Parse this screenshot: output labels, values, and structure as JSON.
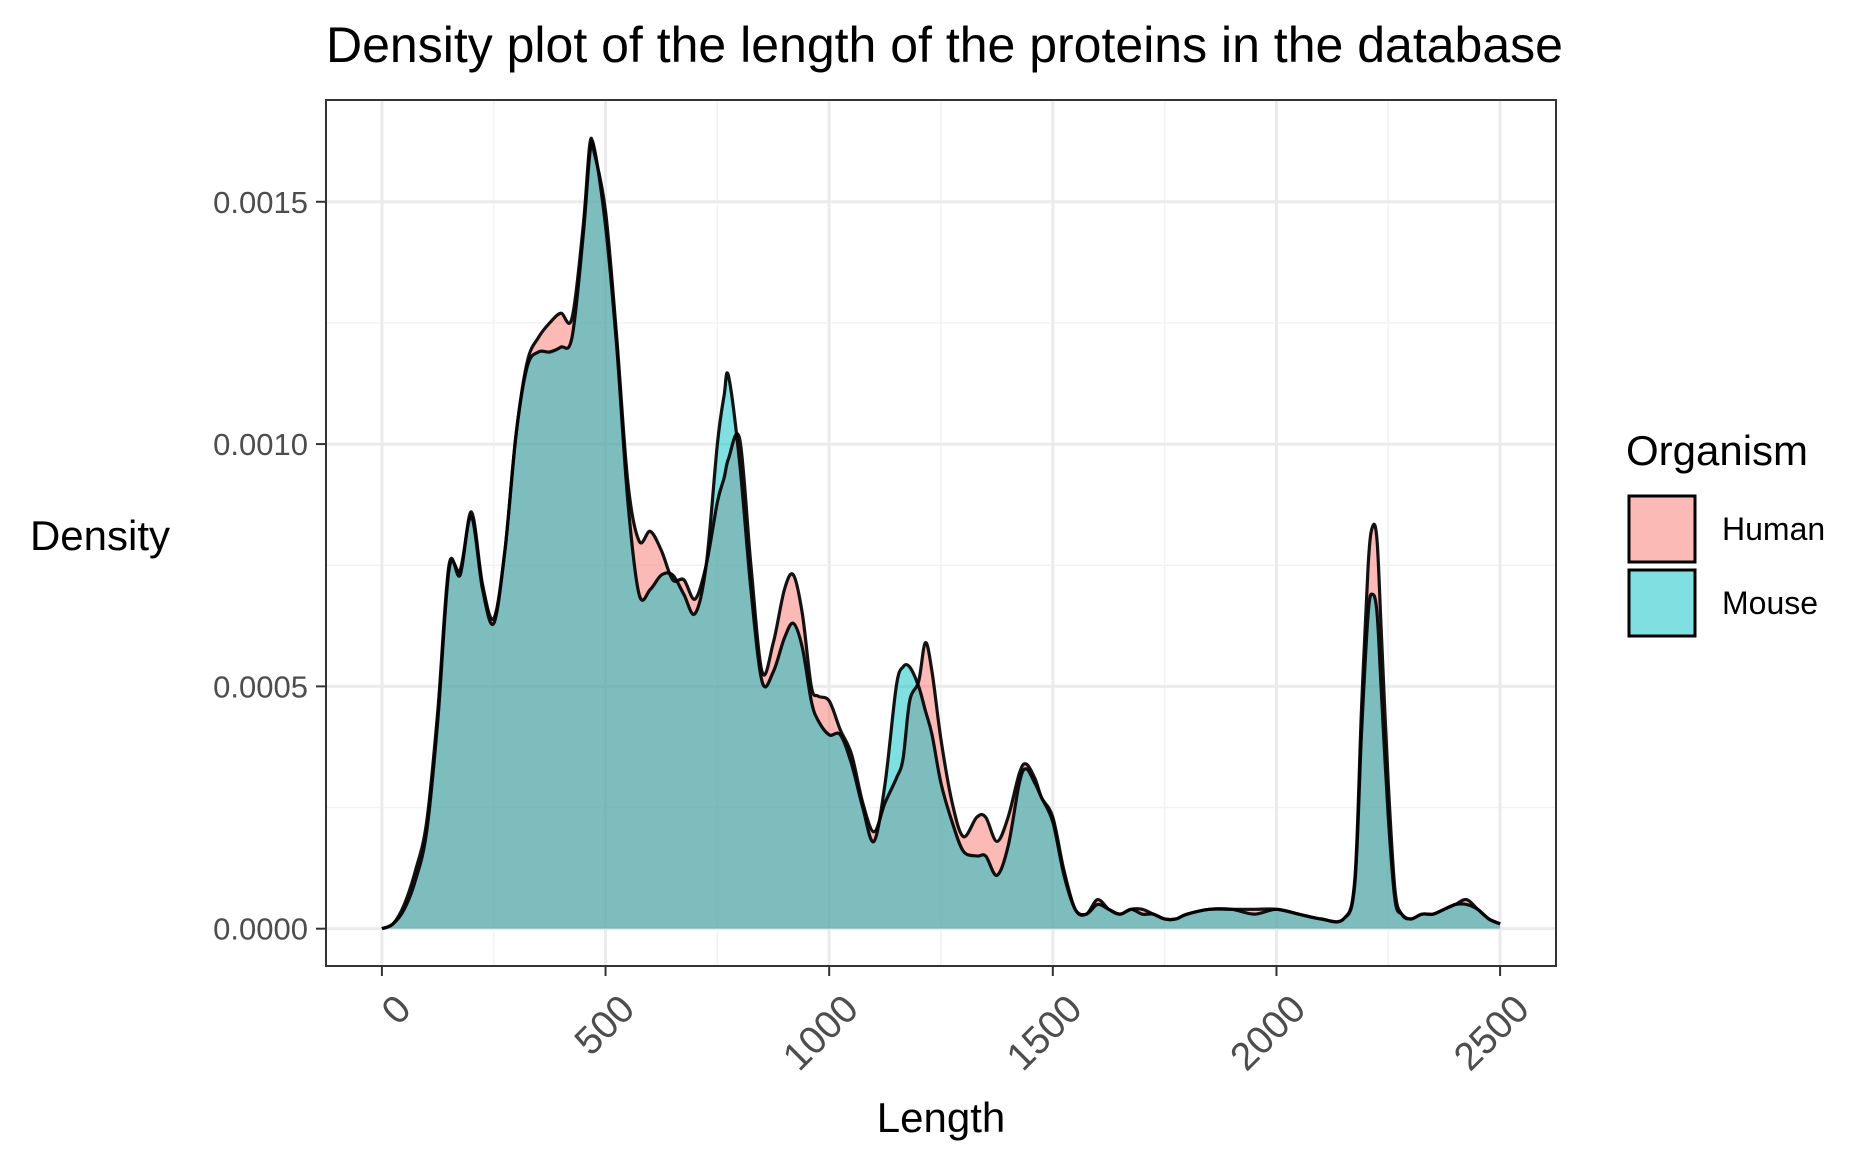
{
  "chart_data": {
    "type": "area",
    "title": "Density plot of the length of the proteins in the database",
    "xlabel": "Length",
    "ylabel": "Density",
    "xlim": [
      -125,
      2625
    ],
    "ylim": [
      -7.7e-05,
      0.00171
    ],
    "x_ticks": [
      0,
      500,
      1000,
      1500,
      2000,
      2500
    ],
    "x_tick_labels": [
      "0",
      "500",
      "1000",
      "1500",
      "2000",
      "2500"
    ],
    "y_ticks": [
      0,
      0.0005,
      0.001,
      0.0015
    ],
    "y_tick_labels": [
      "0.0000",
      "0.0005",
      "0.0010",
      "0.0015"
    ],
    "grid": true,
    "legend": {
      "title": "Organism",
      "placement": "right"
    },
    "x": [
      0,
      25,
      50,
      75,
      100,
      125,
      150,
      175,
      200,
      225,
      250,
      275,
      300,
      325,
      350,
      375,
      400,
      425,
      450,
      465,
      475,
      500,
      525,
      550,
      575,
      600,
      625,
      650,
      675,
      700,
      725,
      750,
      765,
      775,
      800,
      825,
      850,
      875,
      900,
      920,
      940,
      960,
      975,
      1000,
      1025,
      1050,
      1075,
      1100,
      1125,
      1150,
      1165,
      1180,
      1200,
      1215,
      1230,
      1250,
      1275,
      1300,
      1330,
      1350,
      1375,
      1400,
      1425,
      1440,
      1460,
      1475,
      1500,
      1525,
      1550,
      1575,
      1600,
      1625,
      1650,
      1675,
      1700,
      1725,
      1750,
      1775,
      1800,
      1850,
      1900,
      1950,
      2000,
      2050,
      2100,
      2150,
      2175,
      2190,
      2205,
      2215,
      2225,
      2235,
      2250,
      2265,
      2280,
      2300,
      2325,
      2350,
      2375,
      2400,
      2425,
      2450,
      2475,
      2500
    ],
    "series": [
      {
        "name": "Human",
        "color": "#f8766d",
        "values": [
          0.0,
          1e-05,
          5e-05,
          0.00012,
          0.00022,
          0.00045,
          0.00075,
          0.00073,
          0.00086,
          0.00071,
          0.00064,
          0.00078,
          0.00102,
          0.00117,
          0.00122,
          0.00125,
          0.00127,
          0.00126,
          0.00145,
          0.00162,
          0.0016,
          0.00148,
          0.00122,
          0.00092,
          0.0008,
          0.00082,
          0.00078,
          0.00072,
          0.00072,
          0.00068,
          0.00075,
          0.00088,
          0.00093,
          0.00097,
          0.00101,
          0.00075,
          0.00053,
          0.00059,
          0.0007,
          0.00073,
          0.00065,
          0.0005,
          0.00048,
          0.00047,
          0.00041,
          0.00036,
          0.00026,
          0.0002,
          0.00026,
          0.00031,
          0.00035,
          0.00047,
          0.00051,
          0.00059,
          0.00053,
          0.00039,
          0.00026,
          0.00019,
          0.00023,
          0.00023,
          0.00018,
          0.00023,
          0.00032,
          0.00034,
          0.00031,
          0.00027,
          0.00023,
          0.00012,
          4e-05,
          3e-05,
          6e-05,
          4e-05,
          3e-05,
          4e-05,
          4e-05,
          3e-05,
          2e-05,
          2e-05,
          3e-05,
          4e-05,
          4e-05,
          4e-05,
          4e-05,
          3e-05,
          2e-05,
          2e-05,
          0.0001,
          0.00045,
          0.00075,
          0.00083,
          0.0008,
          0.0006,
          0.0003,
          8e-05,
          3e-05,
          2e-05,
          3e-05,
          3e-05,
          4e-05,
          5e-05,
          6e-05,
          4e-05,
          2e-05,
          1e-05
        ]
      },
      {
        "name": "Mouse",
        "color": "#00bfc4",
        "values": [
          0.0,
          1e-05,
          4e-05,
          0.0001,
          0.0002,
          0.00043,
          0.00074,
          0.00074,
          0.00085,
          0.0007,
          0.00063,
          0.00078,
          0.00102,
          0.00116,
          0.00119,
          0.00119,
          0.0012,
          0.00122,
          0.00143,
          0.0016,
          0.00161,
          0.00145,
          0.0012,
          0.00088,
          0.00069,
          0.0007,
          0.00073,
          0.00073,
          0.00069,
          0.00065,
          0.00075,
          0.001,
          0.0011,
          0.00114,
          0.00096,
          0.0007,
          0.00051,
          0.00053,
          0.0006,
          0.00063,
          0.00058,
          0.00047,
          0.00043,
          0.0004,
          0.0004,
          0.00034,
          0.00025,
          0.00018,
          0.0003,
          0.0005,
          0.00054,
          0.00054,
          0.0005,
          0.00045,
          0.0004,
          0.0003,
          0.00022,
          0.00016,
          0.00015,
          0.00015,
          0.00011,
          0.00017,
          0.0003,
          0.00033,
          0.0003,
          0.00027,
          0.00022,
          0.00011,
          4e-05,
          3e-05,
          5e-05,
          4e-05,
          3e-05,
          4e-05,
          3e-05,
          3e-05,
          2e-05,
          2e-05,
          3e-05,
          4e-05,
          4e-05,
          3e-05,
          4e-05,
          3e-05,
          2e-05,
          2e-05,
          9e-05,
          0.0004,
          0.00065,
          0.00069,
          0.00065,
          0.00048,
          0.00023,
          6e-05,
          3e-05,
          2e-05,
          3e-05,
          3e-05,
          4e-05,
          5e-05,
          5e-05,
          4e-05,
          2e-05,
          1e-05
        ]
      }
    ]
  }
}
